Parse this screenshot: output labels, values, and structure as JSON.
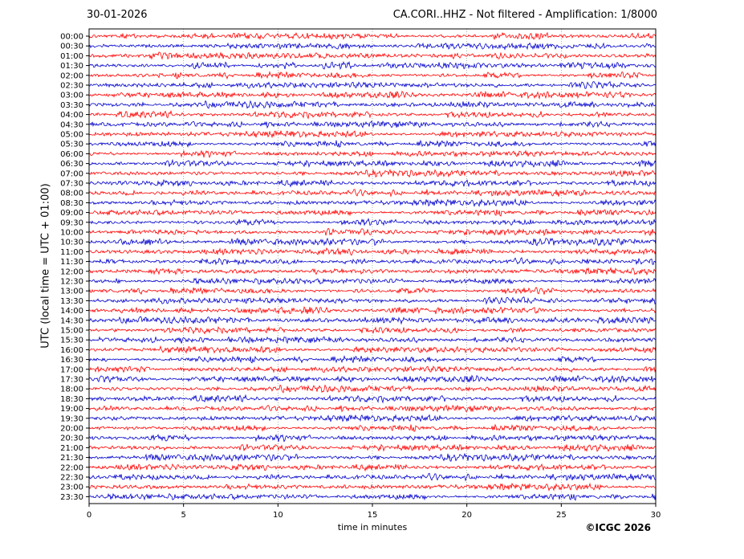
{
  "header": {
    "date": "30-01-2026",
    "title": "CA.CORI..HHZ - Not filtered - Amplification: 1/8000"
  },
  "footer": {
    "copyright": "©ICGC 2026"
  },
  "chart_data": {
    "type": "line",
    "title": "CA.CORI..HHZ - Not filtered - Amplification: 1/8000",
    "xlabel": "time in minutes",
    "ylabel": "UTC (local time = UTC + 01:00)",
    "xlim": [
      0,
      30
    ],
    "xticks": [
      0,
      5,
      10,
      15,
      20,
      25,
      30
    ],
    "grid": "vertical dotted lines at x ticks",
    "legend": "none",
    "trace_colors": [
      "#ff0000",
      "#0000cc"
    ],
    "traces": [
      "00:00",
      "00:30",
      "01:00",
      "01:30",
      "02:00",
      "02:30",
      "03:00",
      "03:30",
      "04:00",
      "04:30",
      "05:00",
      "05:30",
      "06:00",
      "06:30",
      "07:00",
      "07:30",
      "08:00",
      "08:30",
      "09:00",
      "09:30",
      "10:00",
      "10:30",
      "11:00",
      "11:30",
      "12:00",
      "12:30",
      "13:00",
      "13:30",
      "14:00",
      "14:30",
      "15:00",
      "15:30",
      "16:00",
      "16:30",
      "17:00",
      "17:30",
      "18:00",
      "18:30",
      "19:00",
      "19:30",
      "20:00",
      "20:30",
      "21:00",
      "21:30",
      "22:00",
      "22:30",
      "23:00",
      "23:30"
    ]
  }
}
